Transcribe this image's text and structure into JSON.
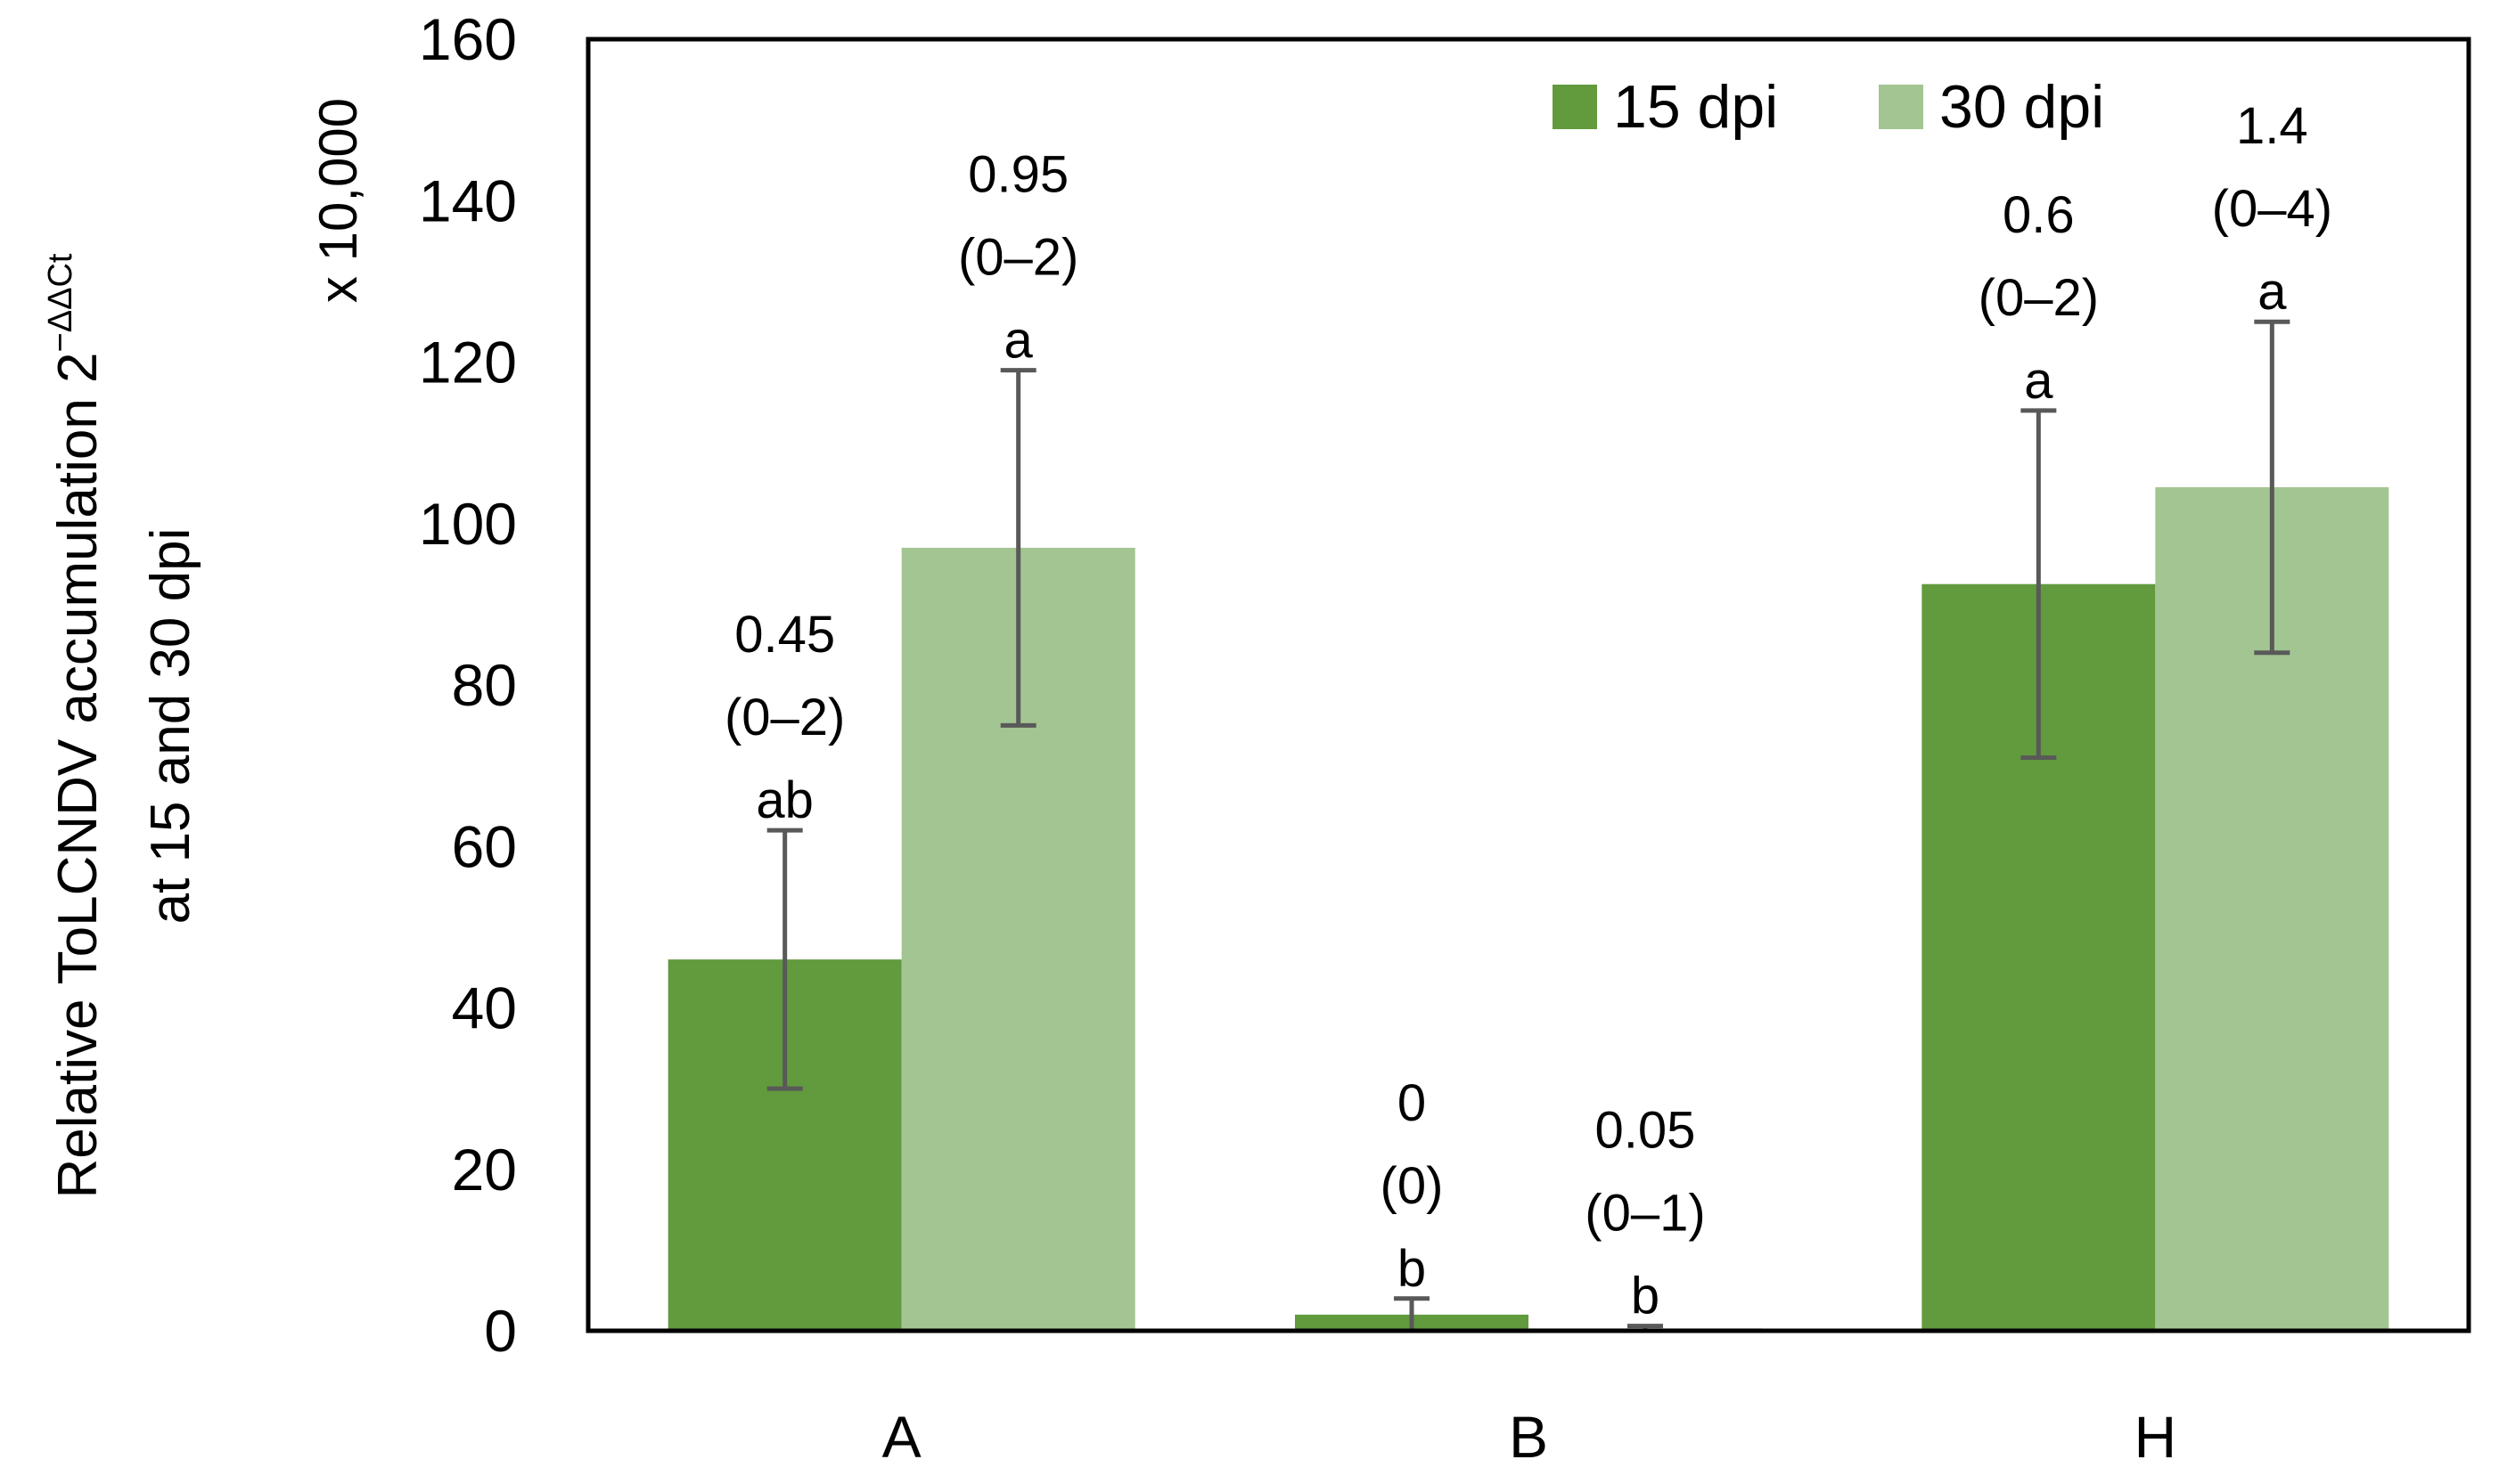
{
  "chart_data": {
    "type": "bar",
    "title": "",
    "categories": [
      "A",
      "B",
      "H"
    ],
    "series": [
      {
        "name": "15 dpi",
        "color": "#629a3e",
        "values": [
          46,
          2,
          92.5
        ],
        "error_low": [
          30,
          0,
          71
        ],
        "error_high": [
          62,
          4,
          114
        ],
        "annotations": [
          [
            "0.45",
            "(0–2)",
            "ab"
          ],
          [
            "0",
            "(0)",
            "b"
          ],
          [
            "0.6",
            "(0–2)",
            "a"
          ]
        ]
      },
      {
        "name": "30 dpi",
        "color": "#a3c592",
        "values": [
          97,
          0.3,
          104.5
        ],
        "error_low": [
          75,
          0,
          84
        ],
        "error_high": [
          119,
          0.6,
          125
        ],
        "annotations": [
          [
            "0.95",
            "(0–2)",
            "a"
          ],
          [
            "0.05",
            "(0–1)",
            "b"
          ],
          [
            "1.4",
            "(0–4)",
            "a"
          ]
        ]
      }
    ],
    "ylim": [
      0,
      160
    ],
    "yticks": [
      0,
      20,
      40,
      60,
      80,
      100,
      120,
      140,
      160
    ],
    "scale_label": "x 10,000",
    "ylabel_line1": "Relative ToLCNDV accumulation 2",
    "ylabel_superscript": "−ΔΔCt",
    "ylabel_line2": "at 15  and 30 dpi",
    "xlabel": "",
    "legend_position": "top-right",
    "grid": false,
    "error_bar_color": "#595959",
    "axis_color": "#000000"
  }
}
